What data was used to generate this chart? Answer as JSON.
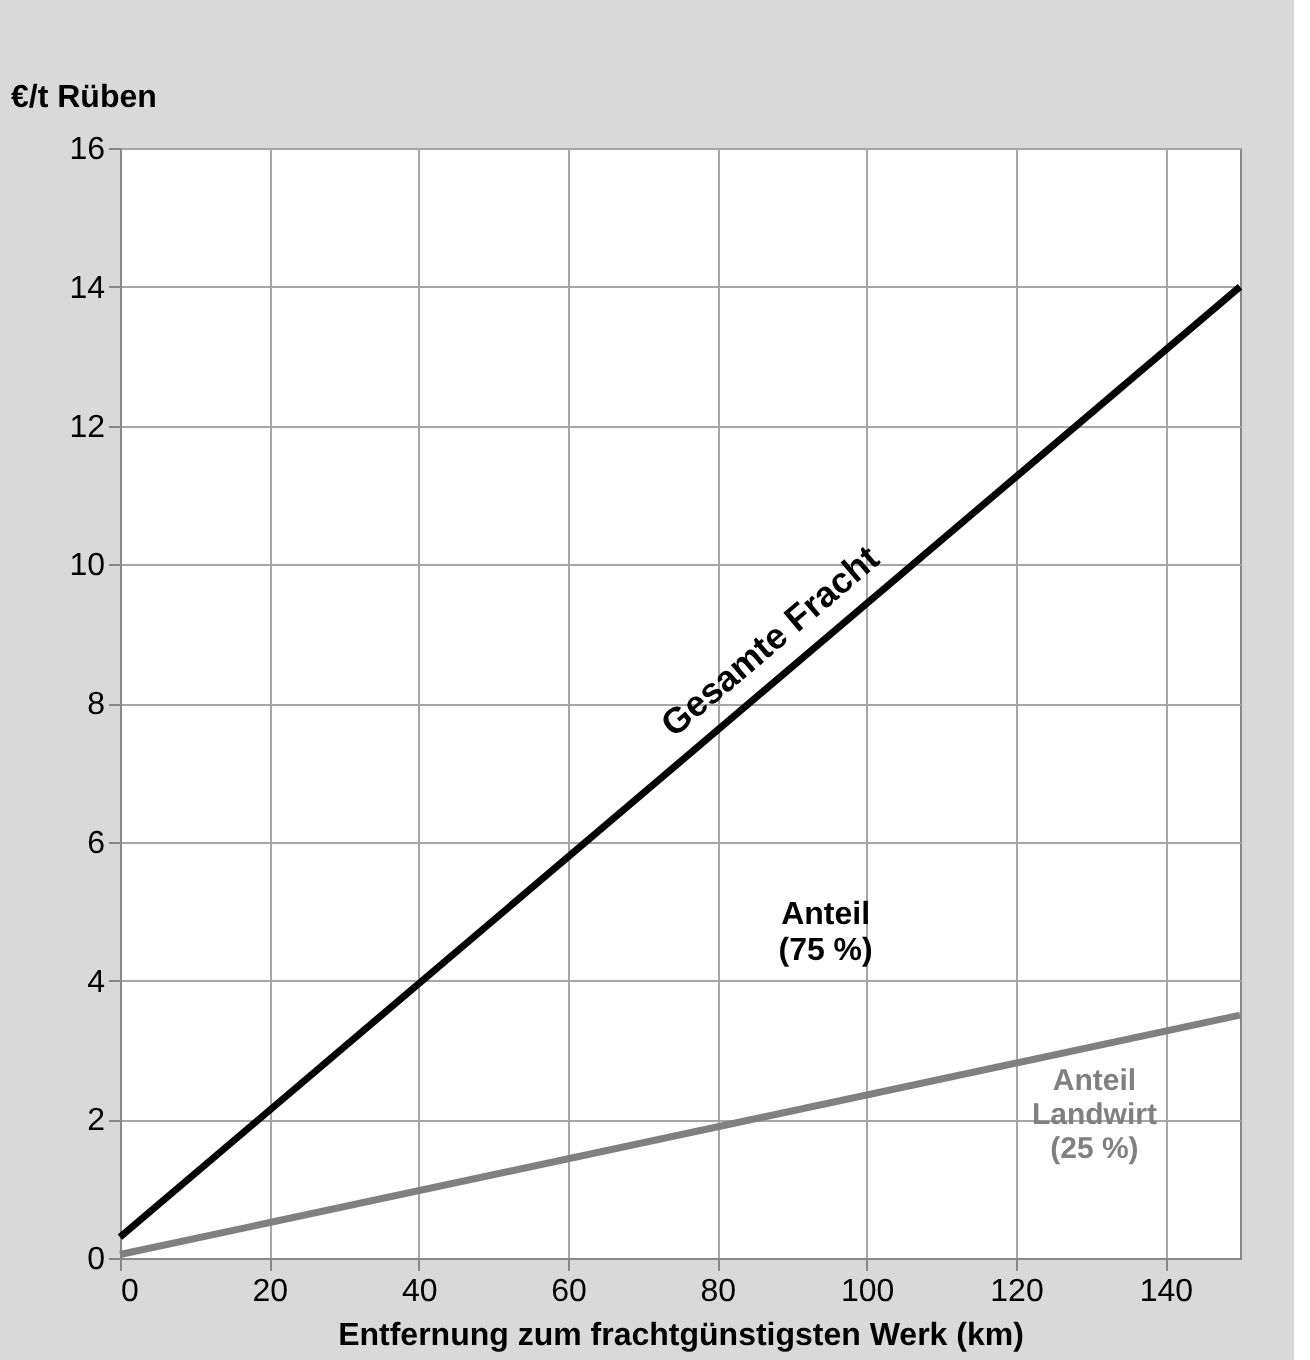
{
  "chart_data": {
    "type": "line",
    "ylabel": "€/t Rüben",
    "xlabel": "Entfernung zum frachtgünstigsten Werk (km)",
    "x": [
      0,
      150
    ],
    "series": [
      {
        "name": "Gesamte Fracht",
        "color": "#000000",
        "values": [
          0.3,
          14
        ]
      },
      {
        "name": "Anteil\nLandwirt\n(25 %)",
        "color": "#808080",
        "values": [
          0.05,
          3.5
        ]
      }
    ],
    "annotations": [
      "Anteil\n(75 %)"
    ],
    "xlim": [
      0,
      150
    ],
    "xticks": [
      0,
      20,
      40,
      60,
      80,
      100,
      120,
      140
    ],
    "ylim": [
      0,
      16
    ],
    "yticks": [
      0,
      2,
      4,
      6,
      8,
      10,
      12,
      14,
      16
    ],
    "grid": true,
    "marker": "none",
    "line_style": "solid"
  }
}
